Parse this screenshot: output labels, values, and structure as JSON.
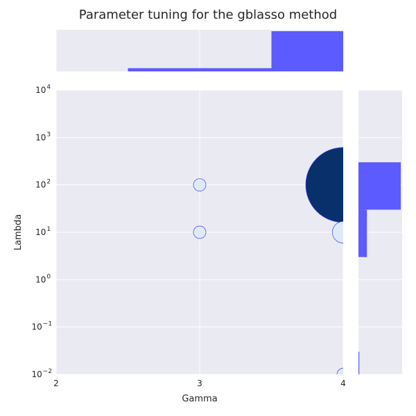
{
  "chart_data": {
    "type": "scatter",
    "title": "Parameter tuning for the gblasso method",
    "xlabel": "Gamma",
    "ylabel": "Lambda",
    "x_scale": "linear",
    "y_scale": "log",
    "xlim": [
      2,
      4
    ],
    "ylim": [
      0.01,
      10000
    ],
    "x_ticks": [
      {
        "value": 2,
        "label": "2"
      },
      {
        "value": 3,
        "label": "3"
      },
      {
        "value": 4,
        "label": "4"
      }
    ],
    "y_ticks": [
      {
        "value": 0.01,
        "base": "10",
        "exp": "−2"
      },
      {
        "value": 0.1,
        "base": "10",
        "exp": "−1"
      },
      {
        "value": 1,
        "base": "10",
        "exp": "0"
      },
      {
        "value": 10,
        "base": "10",
        "exp": "1"
      },
      {
        "value": 100,
        "base": "10",
        "exp": "2"
      },
      {
        "value": 1000,
        "base": "10",
        "exp": "3"
      },
      {
        "value": 10000,
        "base": "10",
        "exp": "4"
      }
    ],
    "grid": true,
    "points": [
      {
        "x": 3,
        "y": 100,
        "size": 1,
        "fill": "#deebf7"
      },
      {
        "x": 3,
        "y": 10,
        "size": 1,
        "fill": "#deebf7"
      },
      {
        "x": 4,
        "y": 100,
        "size": 36,
        "fill": "#08306b"
      },
      {
        "x": 4,
        "y": 10,
        "size": 3,
        "fill": "#deebf7"
      },
      {
        "x": 4,
        "y": 0.01,
        "size": 1,
        "fill": "#deebf7"
      }
    ],
    "marginal_x": {
      "bins": [
        {
          "from": 2.5,
          "to": 3.5,
          "height": 0.08
        },
        {
          "from": 3.5,
          "to": 4.0,
          "height": 1.0
        }
      ]
    },
    "marginal_y": {
      "bins": [
        {
          "from": 30,
          "to": 300,
          "width": 1.0
        },
        {
          "from": 3,
          "to": 30,
          "width": 0.2
        },
        {
          "from": 0.01,
          "to": 0.03,
          "width": 0.02
        }
      ]
    },
    "colors": {
      "background": "#eaeaf2",
      "grid": "#ffffff",
      "marker_edge": "#3b3bff",
      "hist_fill": "#5b5bff"
    }
  }
}
